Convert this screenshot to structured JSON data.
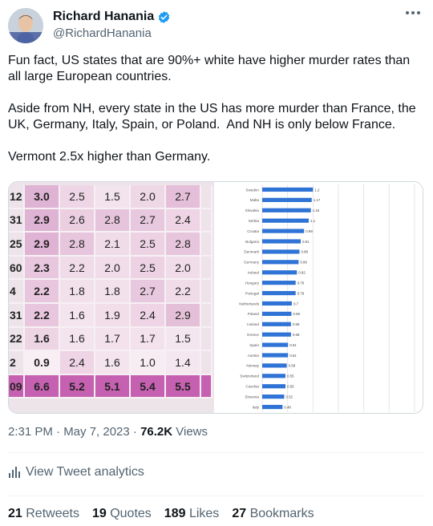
{
  "author": {
    "display_name": "Richard Hanania",
    "handle": "@RichardHanania"
  },
  "tweet": {
    "text": "Fun fact, US states that are 90%+ white have higher murder rates than all large European countries.\n\nAside from NH, every state in the US has more murder than France, the UK, Germany, Italy, Spain, or Poland.  And NH is only below France.\n\nVermont 2.5x higher than Germany."
  },
  "heatmap": {
    "rows": [
      {
        "edge": "12",
        "cells": [
          "3.0",
          "2.5",
          "1.5",
          "2.0",
          "2.7"
        ],
        "colors": [
          "#dfb3d3",
          "#efd6e6",
          "#f3e3ec",
          "#efd8e6",
          "#e5bfd9"
        ]
      },
      {
        "edge": "31",
        "cells": [
          "2.9",
          "2.6",
          "2.8",
          "2.7",
          "2.4"
        ],
        "colors": [
          "#dfb3d3",
          "#ebcfe1",
          "#e6c4dc",
          "#e8c8de",
          "#eed4e4"
        ]
      },
      {
        "edge": "25",
        "cells": [
          "2.9",
          "2.8",
          "2.1",
          "2.5",
          "2.8"
        ],
        "colors": [
          "#dfb3d3",
          "#e7c6dd",
          "#f0dbe8",
          "#ecd2e3",
          "#e7c6dd"
        ]
      },
      {
        "edge": "60",
        "cells": [
          "2.3",
          "2.2",
          "2.0",
          "2.5",
          "2.0"
        ],
        "colors": [
          "#e8c6dd",
          "#f0dbe8",
          "#f1dde9",
          "#ecd2e3",
          "#f1dde9"
        ]
      },
      {
        "edge": "4",
        "cells": [
          "2.2",
          "1.8",
          "1.8",
          "2.7",
          "2.2"
        ],
        "colors": [
          "#e8c6dd",
          "#f2e0eb",
          "#f2e0eb",
          "#e8c8de",
          "#f0dbe8"
        ]
      },
      {
        "edge": "31",
        "cells": [
          "2.2",
          "1.6",
          "1.9",
          "2.4",
          "2.9"
        ],
        "colors": [
          "#e8c6dd",
          "#f4e4ed",
          "#f1dee9",
          "#eed4e4",
          "#e4bfd8"
        ]
      },
      {
        "edge": "22",
        "cells": [
          "1.6",
          "1.6",
          "1.7",
          "1.7",
          "1.5"
        ],
        "colors": [
          "#eed5e4",
          "#f4e4ed",
          "#f3e2ec",
          "#f3e2ec",
          "#f4e6ee"
        ]
      },
      {
        "edge": "2",
        "cells": [
          "0.9",
          "2.4",
          "1.6",
          "1.0",
          "1.4"
        ],
        "colors": [
          "#f8eef3",
          "#eed4e4",
          "#f4e4ed",
          "#f7ecf2",
          "#f5e7ef"
        ]
      },
      {
        "edge": "09",
        "cells": [
          "6.6",
          "5.2",
          "5.1",
          "5.4",
          "5.5"
        ],
        "colors": [
          "#c561b0",
          "#c561b0",
          "#c561b0",
          "#c561b0",
          "#c561b0"
        ]
      }
    ]
  },
  "chart_data": {
    "type": "bar",
    "orientation": "horizontal",
    "categories": [
      "Sweden",
      "Malta",
      "Slovakia",
      "Serbia",
      "Croatia",
      "Bulgaria",
      "Denmark",
      "Germany",
      "Ireland",
      "Hungary",
      "Portugal",
      "Netherlands",
      "Poland",
      "Iceland",
      "Greece",
      "Spain",
      "Austria",
      "Norway",
      "Switzerland",
      "Czechia",
      "Slovenia",
      "Italy"
    ],
    "values": [
      1.2,
      1.17,
      1.15,
      1.1,
      0.99,
      0.91,
      0.88,
      0.86,
      0.82,
      0.79,
      0.79,
      0.7,
      0.69,
      0.68,
      0.68,
      0.61,
      0.61,
      0.58,
      0.55,
      0.55,
      0.52,
      0.48
    ],
    "xlim": [
      0,
      3.6
    ],
    "bar_color": "#2f73d6",
    "grid": true
  },
  "meta": {
    "time": "2:31 PM · May 7, 2023 · ",
    "views_count": "76.2K",
    "views_label": " Views"
  },
  "analytics_label": "View Tweet analytics",
  "stats": {
    "retweets_count": "21",
    "retweets_label": "Retweets",
    "quotes_count": "19",
    "quotes_label": "Quotes",
    "likes_count": "189",
    "likes_label": "Likes",
    "bookmarks_count": "27",
    "bookmarks_label": "Bookmarks"
  }
}
